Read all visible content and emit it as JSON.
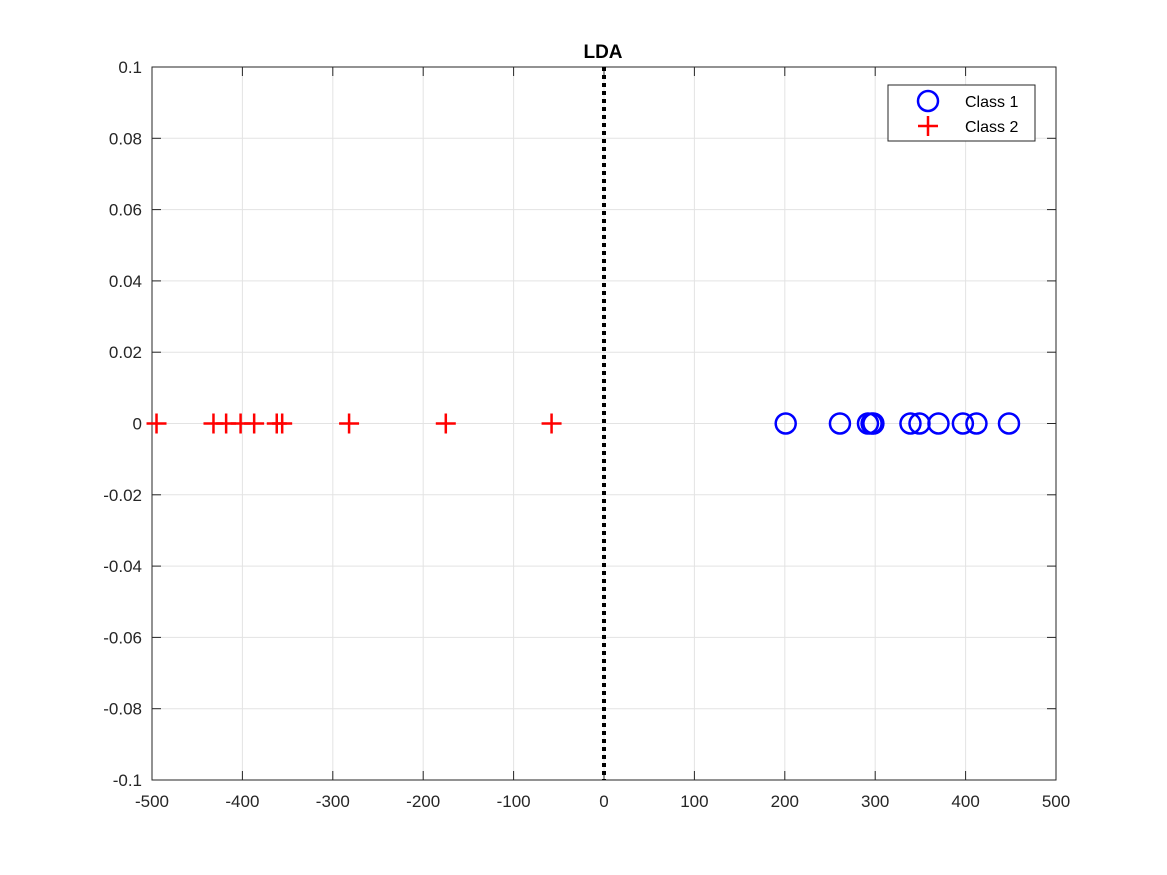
{
  "chart_data": {
    "type": "scatter",
    "title": "LDA",
    "xlabel": "",
    "ylabel": "",
    "xlim": [
      -500,
      500
    ],
    "ylim": [
      -0.1,
      0.1
    ],
    "xticks": [
      -500,
      -400,
      -300,
      -200,
      -100,
      0,
      100,
      200,
      300,
      400,
      500
    ],
    "yticks": [
      -0.1,
      -0.08,
      -0.06,
      -0.04,
      -0.02,
      0,
      0.02,
      0.04,
      0.06,
      0.08,
      0.1
    ],
    "xtick_labels": [
      "-500",
      "-400",
      "-300",
      "-200",
      "-100",
      "0",
      "100",
      "200",
      "300",
      "400",
      "500"
    ],
    "ytick_labels": [
      "-0.1",
      "-0.08",
      "-0.06",
      "-0.04",
      "-0.02",
      "0",
      "0.02",
      "0.04",
      "0.06",
      "0.08",
      "0.1"
    ],
    "grid": true,
    "legend_position": "top-right",
    "series": [
      {
        "name": "Class 1",
        "marker": "circle",
        "color": "#0000ff",
        "x": [
          201,
          261,
          292,
          296,
          298,
          339,
          349,
          370,
          397,
          412,
          448
        ],
        "y": [
          0,
          0,
          0,
          0,
          0,
          0,
          0,
          0,
          0,
          0,
          0
        ]
      },
      {
        "name": "Class 2",
        "marker": "plus",
        "color": "#ff0000",
        "x": [
          -495,
          -432,
          -418,
          -402,
          -387,
          -362,
          -356,
          -282,
          -175,
          -58
        ],
        "y": [
          0,
          0,
          0,
          0,
          0,
          0,
          0,
          0,
          0,
          0
        ]
      }
    ],
    "decision_boundary": {
      "x": 0,
      "style": "dotted",
      "color": "#000000"
    }
  }
}
